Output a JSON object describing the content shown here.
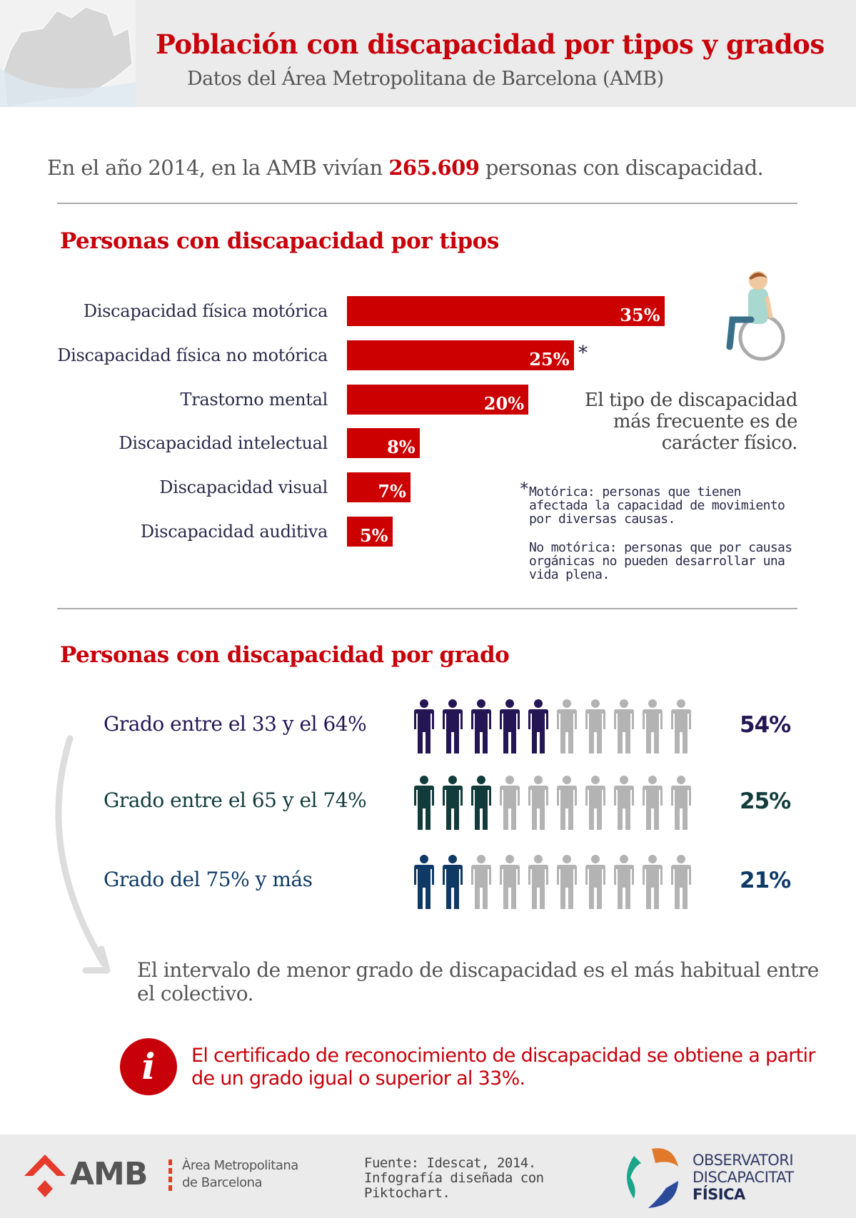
{
  "header": {
    "title": "Población con discapacidad por tipos y grados",
    "subtitle": "Datos del Área Metropolitana de Barcelona (AMB)"
  },
  "intro": {
    "before": "En el año 2014, en la AMB vivían ",
    "number": "265.609",
    "after": " personas con discapacidad."
  },
  "colors": {
    "accent": "#cc0000",
    "grado1": "#241655",
    "grado2": "#123c3c",
    "grado3": "#0f3a66",
    "inactive": "#b3b3b3"
  },
  "chart_data": [
    {
      "type": "bar",
      "title": "Personas con discapacidad por tipos",
      "categories": [
        "Discapacidad física motórica",
        "Discapacidad física no motórica",
        "Trastorno mental",
        "Discapacidad intelectual",
        "Discapacidad visual",
        "Discapacidad auditiva"
      ],
      "values": [
        35,
        25,
        20,
        8,
        7,
        5
      ],
      "labels": [
        "35%",
        "25%",
        "20%",
        "8%",
        "7%",
        "5%"
      ],
      "unit": "%",
      "orientation": "horizontal"
    },
    {
      "type": "pictogram",
      "title": "Personas con discapacidad por grado",
      "categories": [
        "Grado entre el 33 y el 64%",
        "Grado entre el 65 y el 74%",
        "Grado del 75% y más"
      ],
      "values": [
        54,
        25,
        21
      ],
      "labels": [
        "54%",
        "25%",
        "21%"
      ],
      "filled_icons": [
        5,
        3,
        2
      ],
      "total_icons": 10
    }
  ],
  "tipos": {
    "asterisk": "*",
    "side_text": "El tipo de discapacidad más frecuente es de carácter físico.",
    "footnote_1": "Motórica: personas que tienen afectada la capacidad de movimiento por diversas causas.",
    "footnote_2": "No motórica: personas que por causas orgánicas no pueden desarrollar una vida plena."
  },
  "grado": {
    "conclusion": "El intervalo de menor grado de discapacidad es el más habitual entre el colectivo."
  },
  "info": {
    "icon": "i",
    "text": "El certificado de reconocimiento de discapacidad se obtiene a partir de un grado igual o superior al 33%."
  },
  "footer": {
    "amb_logo": "AMB",
    "amb_name_1": "Àrea Metropolitana",
    "amb_name_2": "de Barcelona",
    "source_1": "Fuente: Idescat, 2014.",
    "source_2": "Infografía diseñada con",
    "source_3": "Piktochart.",
    "obs_1": "OBSERVATORI",
    "obs_2": "DISCAPACITAT",
    "obs_3": "FÍSICA"
  }
}
